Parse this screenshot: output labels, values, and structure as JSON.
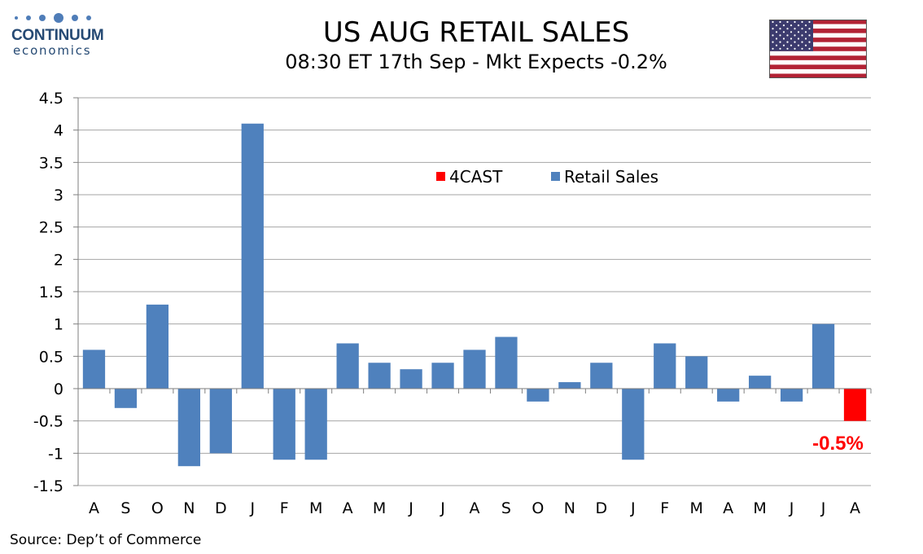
{
  "logo": {
    "name": "CONTINUUM",
    "sub": "economics"
  },
  "header": {
    "title": "US AUG RETAIL SALES",
    "subtitle": "08:30 ET 17th Sep - Mkt Expects -0.2%"
  },
  "flag_icon": "us-flag-icon",
  "source": "Source: Dep’t of Commerce",
  "colors": {
    "actual": "#4f81bd",
    "forecast": "#ff0000",
    "grid": "#a6a6a6",
    "logo": "#264a74"
  },
  "chart_data": {
    "type": "bar",
    "categories": [
      "A",
      "S",
      "O",
      "N",
      "D",
      "J",
      "F",
      "M",
      "A",
      "M",
      "J",
      "J",
      "A",
      "S",
      "O",
      "N",
      "D",
      "J",
      "F",
      "M",
      "A",
      "M",
      "J",
      "J",
      "A"
    ],
    "series": [
      {
        "name": "Retail Sales",
        "color": "#4f81bd",
        "values": [
          0.6,
          -0.3,
          1.3,
          -1.2,
          -1.0,
          4.1,
          -1.1,
          -1.1,
          0.7,
          0.4,
          0.3,
          0.4,
          0.6,
          0.8,
          -0.2,
          0.1,
          0.4,
          -1.1,
          0.7,
          0.5,
          -0.2,
          0.2,
          -0.2,
          1.0,
          null
        ]
      },
      {
        "name": "4CAST",
        "color": "#ff0000",
        "values": [
          null,
          null,
          null,
          null,
          null,
          null,
          null,
          null,
          null,
          null,
          null,
          null,
          null,
          null,
          null,
          null,
          null,
          null,
          null,
          null,
          null,
          null,
          null,
          null,
          -0.5
        ]
      }
    ],
    "yticks": [
      "4.5",
      "4",
      "3.5",
      "3",
      "2.5",
      "2",
      "1.5",
      "1",
      "0.5",
      "0",
      "-0.5",
      "-1",
      "-1.5"
    ],
    "ylim": [
      -1.5,
      4.5
    ],
    "grid": true,
    "legend": {
      "placement": "top-center",
      "items": [
        "4CAST",
        "Retail Sales"
      ]
    },
    "annotation": {
      "text": "-0.5%",
      "category_index": 24,
      "color": "#ff0000"
    }
  }
}
